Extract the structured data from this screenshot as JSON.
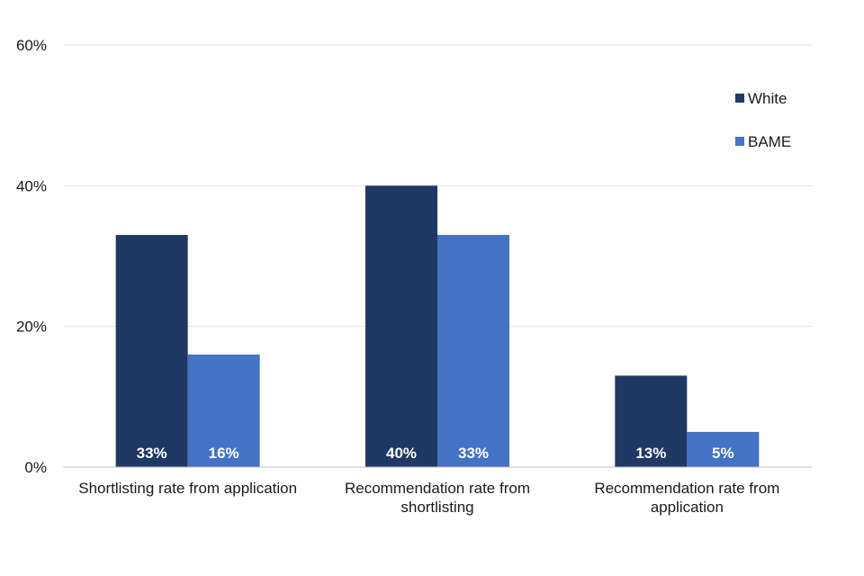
{
  "chart_data": {
    "type": "bar",
    "title": "",
    "xlabel": "",
    "ylabel": "",
    "categories": [
      [
        "Shortlisting rate from application"
      ],
      [
        "Recommendation rate from",
        "shortlisting"
      ],
      [
        "Recommendation rate from",
        "application"
      ]
    ],
    "series": [
      {
        "name": "White",
        "color": "#203864",
        "values": [
          33,
          40,
          13
        ],
        "labels": [
          "33%",
          "40%",
          "13%"
        ]
      },
      {
        "name": "BAME",
        "color": "#4472C4",
        "values": [
          16,
          33,
          5
        ],
        "labels": [
          "16%",
          "33%",
          "5%"
        ]
      }
    ],
    "ylim": [
      0,
      60
    ],
    "yticks": [
      0,
      20,
      40,
      60
    ],
    "ytick_labels": [
      "0%",
      "20%",
      "40%",
      "60%"
    ],
    "grid": true,
    "legend_position": "right"
  }
}
